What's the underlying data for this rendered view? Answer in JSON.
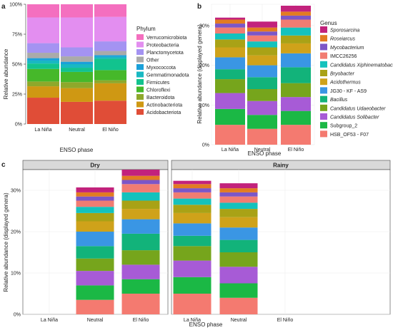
{
  "panels": {
    "a": "a",
    "b": "b",
    "c": "c"
  },
  "colors": {
    "Verrucomicrobiota": "#f46fbf",
    "Proteobacteria": "#e38ef0",
    "Planctomycetota": "#a493f2",
    "Other": "#aaaaaa",
    "Myxococcota": "#1aa0d9",
    "Gemmatimonadota": "#19b8c2",
    "Firmicutes": "#12c38e",
    "Chloroflexi": "#46b82a",
    "Bacteroidota": "#8ea82b",
    "Actinobacteriota": "#cf9813",
    "Acidobacteriota": "#e04d37",
    "Sporosarcina": "#c2227c",
    "Roseiarcus": "#e27b22",
    "Mycobacterium": "#7c56c7",
    "IMCC26256": "#f17c72",
    "Candidatus Xiphinematobacter": "#14c2bd",
    "Bryobacter": "#a9a216",
    "Acidothermus": "#cfa21a",
    "JG30 - KF - AS9": "#3a96e4",
    "Bacillus": "#12b37a",
    "Candidatus Udaeobacter": "#76a51c",
    "Candidatus Solibacter": "#a75bd6",
    "Subgroup_2": "#1bb845",
    "HSB_OF53 - F07": "#f47a70"
  },
  "chart_data": [
    {
      "panel": "a",
      "type": "bar",
      "stacked": true,
      "categories": [
        "La Niña",
        "Neutral",
        "El Niño"
      ],
      "xlabel": "ENSO phase",
      "ylabel": "Relative abundance",
      "ylim": [
        0,
        100
      ],
      "yticks": [
        "0%",
        "25%",
        "50%",
        "75%",
        "100%"
      ],
      "legend_title": "Phylum",
      "legend": [
        "Verrucomicrobiota",
        "Proteobacteria",
        "Planctomycetota",
        "Other",
        "Myxococcota",
        "Gemmatimonadota",
        "Firmicutes",
        "Chloroflexi",
        "Bacteroidota",
        "Actinobacteriota",
        "Acidobacteriota"
      ],
      "series": [
        {
          "name": "Acidobacteriota",
          "values": [
            22,
            18.5,
            19.5
          ]
        },
        {
          "name": "Actinobacteriota",
          "values": [
            9.5,
            11.5,
            14.5
          ]
        },
        {
          "name": "Bacteroidota",
          "values": [
            4,
            5,
            2.5
          ]
        },
        {
          "name": "Chloroflexi",
          "values": [
            10.5,
            8.5,
            8.5
          ]
        },
        {
          "name": "Firmicutes",
          "values": [
            4.5,
            3.5,
            9.5
          ]
        },
        {
          "name": "Gemmatimonadota",
          "values": [
            2.5,
            3,
            1.5
          ]
        },
        {
          "name": "Myxococcota",
          "values": [
            2,
            2,
            1.5
          ]
        },
        {
          "name": "Other",
          "values": [
            4.5,
            4.5,
            3.5
          ]
        },
        {
          "name": "Planctomycetota",
          "values": [
            8,
            7.5,
            8
          ]
        },
        {
          "name": "Proteobacteria",
          "values": [
            21.5,
            25,
            20.5
          ]
        },
        {
          "name": "Verrucomicrobiota",
          "values": [
            11,
            11,
            10.5
          ]
        }
      ]
    },
    {
      "panel": "b",
      "type": "bar",
      "stacked": true,
      "categories": [
        "La Niña",
        "Neutral",
        "El Niño"
      ],
      "xlabel": "ENSO phase",
      "ylabel": "Relative abundance (displayed genera)",
      "ylim": [
        0,
        35
      ],
      "yticks": [
        "0%",
        "10%",
        "20%",
        "30%"
      ],
      "legend_title": "Genus",
      "legend": [
        "Sporosarcina",
        "Roseiarcus",
        "Mycobacterium",
        "IMCC26256",
        "Candidatus Xiphinematobacter",
        "Bryobacter",
        "Acidothermus",
        "JG30 - KF - AS9",
        "Bacillus",
        "Candidatus Udaeobacter",
        "Candidatus Solibacter",
        "Subgroup_2",
        "HSB_OF53 - F07"
      ],
      "italic": [
        "Sporosarcina",
        "Roseiarcus",
        "Mycobacterium",
        "Candidatus Xiphinematobacter",
        "Bryobacter",
        "Acidothermus",
        "Bacillus",
        "Candidatus Udaeobacter",
        "Candidatus Solibacter"
      ],
      "series": [
        {
          "name": "HSB_OF53 - F07",
          "values": [
            5,
            4,
            5
          ]
        },
        {
          "name": "Subgroup_2",
          "values": [
            4,
            3.5,
            3.5
          ]
        },
        {
          "name": "Candidatus Solibacter",
          "values": [
            4,
            3.5,
            3.5
          ]
        },
        {
          "name": "Candidatus Udaeobacter",
          "values": [
            3.5,
            3,
            3.5
          ]
        },
        {
          "name": "Bacillus",
          "values": [
            2.5,
            3,
            4
          ]
        },
        {
          "name": "JG30 - KF - AS9",
          "values": [
            3,
            3,
            3.5
          ]
        },
        {
          "name": "Acidothermus",
          "values": [
            2.5,
            2.5,
            2.5
          ]
        },
        {
          "name": "Bryobacter",
          "values": [
            2,
            2,
            2
          ]
        },
        {
          "name": "Candidatus Xiphinematobacter",
          "values": [
            1.5,
            1.5,
            2
          ]
        },
        {
          "name": "IMCC26256",
          "values": [
            1.5,
            1.5,
            2
          ]
        },
        {
          "name": "Mycobacterium",
          "values": [
            1,
            1,
            1
          ]
        },
        {
          "name": "Roseiarcus",
          "values": [
            1,
            1,
            1
          ]
        },
        {
          "name": "Sporosarcina",
          "values": [
            0.5,
            1.5,
            1.5
          ]
        }
      ]
    },
    {
      "panel": "c",
      "type": "bar",
      "stacked": true,
      "facets": [
        "Dry",
        "Rainy"
      ],
      "categories": [
        "La Niña",
        "Neutral",
        "El Niño"
      ],
      "xlabel": "ENSO phase",
      "ylabel": "Relative abundance (displayed genera)",
      "ylim": [
        0,
        35
      ],
      "yticks": [
        "0%",
        "10%",
        "20%",
        "30%"
      ],
      "series_order": [
        "HSB_OF53 - F07",
        "Subgroup_2",
        "Candidatus Solibacter",
        "Candidatus Udaeobacter",
        "Bacillus",
        "JG30 - KF - AS9",
        "Acidothermus",
        "Bryobacter",
        "Candidatus Xiphinematobacter",
        "IMCC26256",
        "Mycobacterium",
        "Roseiarcus",
        "Sporosarcina"
      ],
      "data": {
        "Dry": {
          "La Niña": null,
          "Neutral": [
            3.5,
            3.5,
            3.5,
            3,
            3,
            3.5,
            2.5,
            2,
            1.5,
            1.5,
            1,
            1,
            1.2
          ],
          "El Niño": [
            5,
            3.5,
            3.5,
            3.5,
            4,
            3.5,
            2.5,
            2,
            2,
            2,
            1,
            1,
            1.5
          ]
        },
        "Rainy": {
          "La Niña": [
            5,
            4,
            4,
            3.5,
            2.5,
            3,
            2.5,
            2,
            1.5,
            1.5,
            1,
            1,
            0.8
          ],
          "Neutral": [
            4,
            3.5,
            4,
            3.5,
            3,
            3,
            2.5,
            2,
            1.5,
            1.5,
            1,
            1,
            1.2
          ],
          "El Niño": null
        }
      }
    }
  ]
}
